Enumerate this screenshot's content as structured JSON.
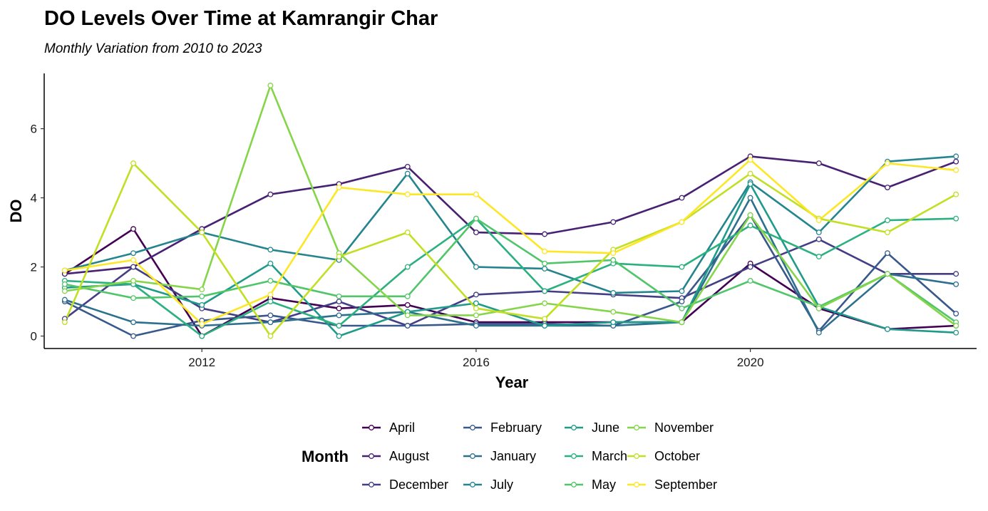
{
  "chart_data": {
    "type": "line",
    "title": "DO Levels Over Time at Kamrangir Char",
    "subtitle": "Monthly Variation from 2010 to 2023",
    "xlabel": "Year",
    "ylabel": "DO",
    "xlim": [
      2009.7,
      2023.3
    ],
    "ylim": [
      -0.36,
      7.6
    ],
    "xticks": [
      2012,
      2016,
      2020
    ],
    "yticks": [
      0,
      2,
      4,
      6
    ],
    "grid": false,
    "legend_title": "Month",
    "legend_position": "bottom",
    "x": [
      2010,
      2011,
      2012,
      2013,
      2014,
      2015,
      2016,
      2017,
      2018,
      2019,
      2020,
      2021,
      2022,
      2023
    ],
    "series": [
      {
        "name": "April",
        "color": "#440154",
        "values": [
          1.8,
          3.1,
          0.0,
          1.1,
          0.8,
          0.9,
          0.4,
          0.4,
          0.4,
          0.4,
          2.1,
          0.8,
          0.2,
          0.3
        ]
      },
      {
        "name": "August",
        "color": "#482173",
        "values": [
          1.8,
          2.0,
          3.1,
          4.1,
          4.4,
          4.9,
          3.0,
          2.95,
          3.3,
          4.0,
          5.2,
          5.0,
          4.3,
          5.05
        ]
      },
      {
        "name": "December",
        "color": "#433E85",
        "values": [
          0.5,
          2.0,
          0.8,
          0.4,
          1.0,
          0.3,
          1.2,
          1.3,
          1.2,
          1.1,
          2.0,
          2.8,
          1.8,
          1.8
        ]
      },
      {
        "name": "February",
        "color": "#38588C",
        "values": [
          1.0,
          0.0,
          0.45,
          0.6,
          0.3,
          0.3,
          0.35,
          0.35,
          0.3,
          1.0,
          3.5,
          0.15,
          2.4,
          0.65
        ]
      },
      {
        "name": "January",
        "color": "#2D708E",
        "values": [
          1.05,
          0.4,
          0.3,
          0.4,
          0.6,
          0.7,
          0.3,
          0.3,
          0.3,
          0.4,
          4.0,
          0.1,
          1.8,
          1.5
        ]
      },
      {
        "name": "July",
        "color": "#25858E",
        "values": [
          1.9,
          2.4,
          3.0,
          2.5,
          2.2,
          4.7,
          2.0,
          1.95,
          1.25,
          1.3,
          4.45,
          3.0,
          5.05,
          5.2
        ]
      },
      {
        "name": "June",
        "color": "#1E9B8A",
        "values": [
          1.4,
          1.5,
          0.9,
          2.1,
          0.0,
          0.7,
          0.95,
          0.3,
          0.4,
          0.4,
          4.4,
          0.85,
          0.2,
          0.1
        ]
      },
      {
        "name": "March",
        "color": "#2BB07F",
        "values": [
          1.6,
          1.5,
          0.0,
          1.0,
          0.3,
          2.0,
          3.4,
          1.3,
          2.1,
          2.0,
          3.2,
          2.3,
          3.35,
          3.4
        ]
      },
      {
        "name": "May",
        "color": "#51C56A",
        "values": [
          1.5,
          1.1,
          1.15,
          1.6,
          1.15,
          1.15,
          3.4,
          2.1,
          2.2,
          0.8,
          1.6,
          0.85,
          1.8,
          0.4
        ]
      },
      {
        "name": "November",
        "color": "#85D54A",
        "values": [
          1.3,
          1.6,
          1.35,
          7.25,
          2.4,
          0.6,
          0.6,
          0.95,
          0.7,
          0.4,
          3.5,
          0.8,
          1.8,
          0.3
        ]
      },
      {
        "name": "October",
        "color": "#C2DF23",
        "values": [
          0.4,
          5.0,
          3.0,
          0.0,
          2.3,
          3.0,
          0.8,
          0.5,
          2.5,
          3.3,
          4.7,
          3.4,
          3.0,
          4.1
        ]
      },
      {
        "name": "September",
        "color": "#FDE725",
        "values": [
          1.9,
          2.2,
          0.35,
          1.2,
          4.3,
          4.1,
          4.1,
          2.45,
          2.4,
          3.3,
          5.1,
          3.35,
          5.0,
          4.8
        ]
      }
    ]
  }
}
